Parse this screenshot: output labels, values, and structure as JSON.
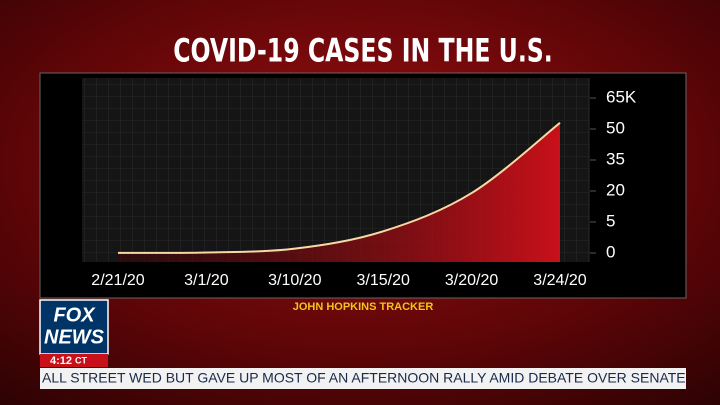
{
  "chart_data": {
    "type": "line",
    "title": "COVID-19 CASES IN THE U.S.",
    "source": "JOHN HOPKINS TRACKER",
    "categories": [
      "2/21/20",
      "3/1/20",
      "3/10/20",
      "3/15/20",
      "3/20/20",
      "3/24/20"
    ],
    "series": [
      {
        "color": "#f6d9a6",
        "values": [
          0.015,
          0.09,
          0.7,
          3.5,
          19,
          53
        ]
      }
    ],
    "ylim": [
      0,
      65
    ],
    "yticks": [
      0,
      5,
      20,
      35,
      50,
      {
        "value": 65,
        "label": "65K"
      }
    ],
    "grid": true
  },
  "branding": {
    "logo_top": "FOX",
    "logo_bottom": "NEWS",
    "time": "4:12",
    "zone": "CT",
    "ticker": "ALL STREET WED BUT GAVE UP MOST OF AN AFTERNOON RALLY AMID DEBATE OVER SENATE CORONAVIRU"
  }
}
